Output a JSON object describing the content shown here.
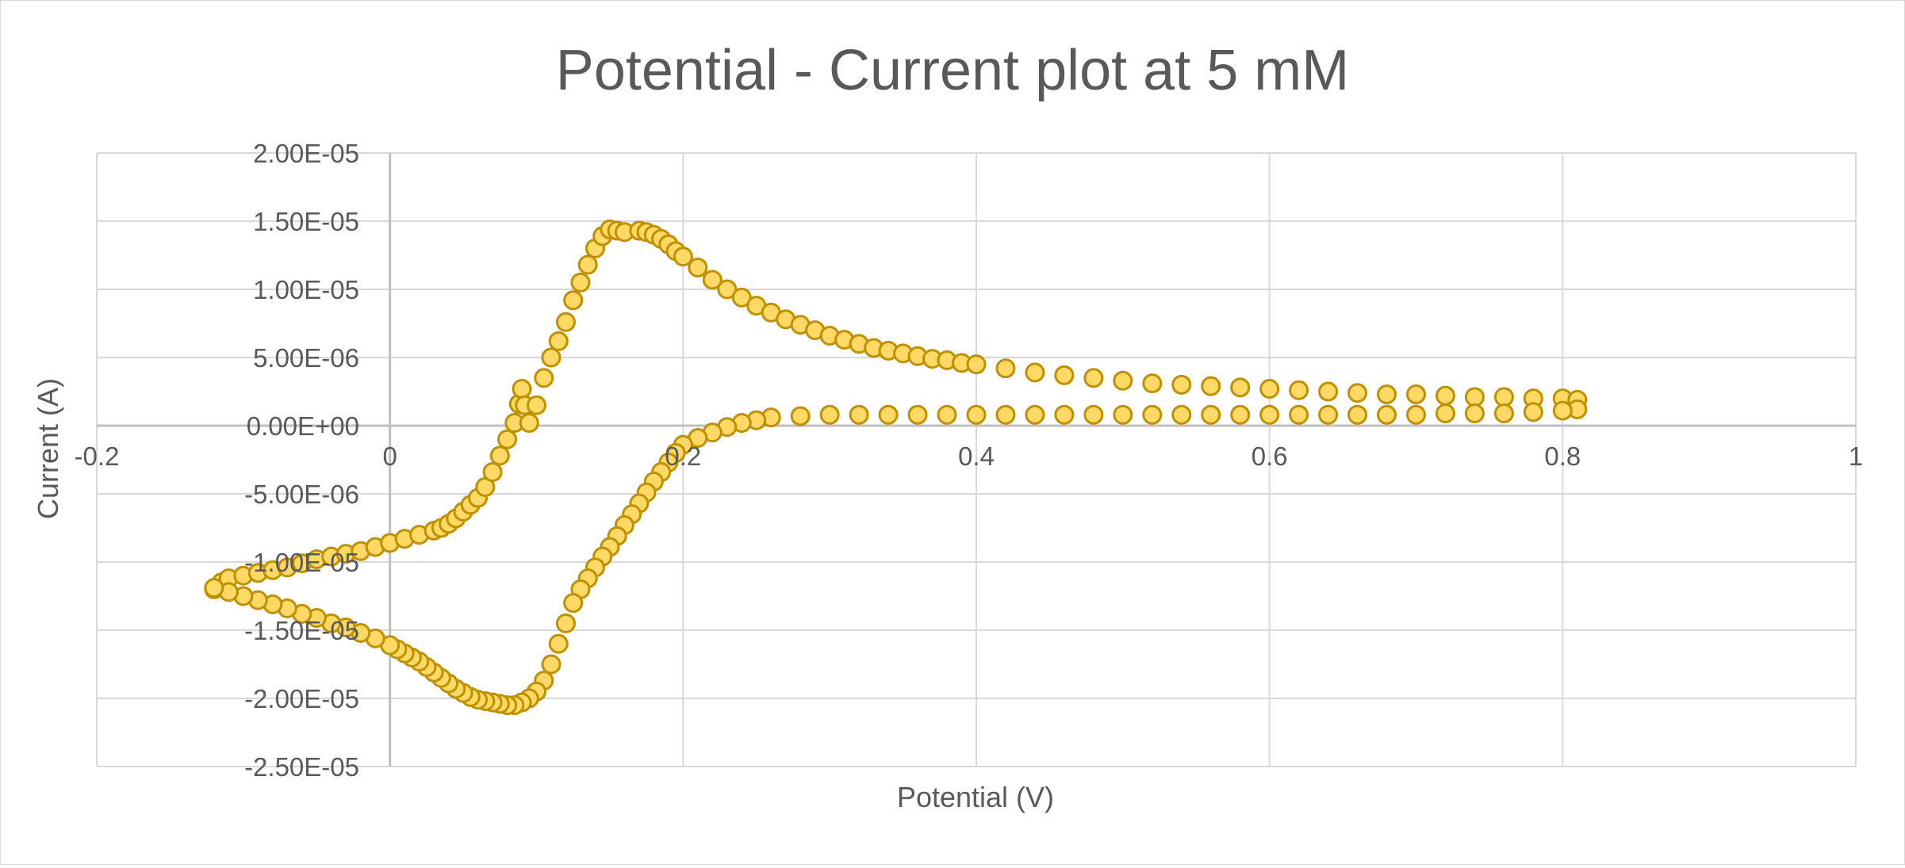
{
  "chart_data": {
    "type": "scatter",
    "title": "Potential - Current plot at 5 mM",
    "xlabel": "Potential (V)",
    "ylabel": "Current (A)",
    "xlim": [
      -0.2,
      1
    ],
    "ylim": [
      -2.5e-05,
      2e-05
    ],
    "x_ticks": [
      -0.2,
      0,
      0.2,
      0.4,
      0.6,
      0.8,
      1
    ],
    "x_tick_labels": [
      "-0.2",
      "0",
      "0.2",
      "0.4",
      "0.6",
      "0.8",
      "1"
    ],
    "y_ticks": [
      2e-05,
      1.5e-05,
      1e-05,
      5e-06,
      0,
      -5e-06,
      -1e-05,
      -1.5e-05,
      -2e-05,
      -2.5e-05
    ],
    "y_tick_labels": [
      "2.00E-05",
      "1.50E-05",
      "1.00E-05",
      "5.00E-06",
      "0.00E+00",
      "-5.00E-06",
      "-1.00E-05",
      "-1.50E-05",
      "-2.00E-05",
      "-2.50E-05"
    ],
    "grid": true,
    "legend": "none",
    "colors": {
      "marker_fill": "#ffd966",
      "marker_edge": "#bf9000",
      "grid": "#d9d9d9",
      "axis": "#bfbfbf",
      "text": "#595959"
    },
    "series": [
      {
        "x": [
          -0.12,
          -0.115,
          -0.11,
          -0.1,
          -0.09,
          -0.08,
          -0.07,
          -0.06,
          -0.05,
          -0.04,
          -0.03,
          -0.02,
          -0.01,
          0.0,
          0.01,
          0.02,
          0.03,
          0.035,
          0.04,
          0.045,
          0.05,
          0.055,
          0.06,
          0.065,
          0.07,
          0.075,
          0.08,
          0.085,
          0.088,
          0.09,
          0.092,
          0.095,
          0.1,
          0.105,
          0.11,
          0.115,
          0.12,
          0.125,
          0.13,
          0.135,
          0.14,
          0.145,
          0.15,
          0.155,
          0.16,
          0.17,
          0.175,
          0.18,
          0.185,
          0.19,
          0.195,
          0.2,
          0.21,
          0.22,
          0.23,
          0.24,
          0.25,
          0.26,
          0.27,
          0.28,
          0.29,
          0.3,
          0.31,
          0.32,
          0.33,
          0.34,
          0.35,
          0.36,
          0.37,
          0.38,
          0.39,
          0.4,
          0.42,
          0.44,
          0.46,
          0.48,
          0.5,
          0.52,
          0.54,
          0.56,
          0.58,
          0.6,
          0.62,
          0.64,
          0.66,
          0.68,
          0.7,
          0.72,
          0.74,
          0.76,
          0.78,
          0.8,
          0.81
        ],
        "y": [
          -1.2e-05,
          -1.15e-05,
          -1.12e-05,
          -1.1e-05,
          -1.08e-05,
          -1.06e-05,
          -1.04e-05,
          -1.01e-05,
          -9.8e-06,
          -9.6e-06,
          -9.4e-06,
          -9.2e-06,
          -8.9e-06,
          -8.6e-06,
          -8.3e-06,
          -8e-06,
          -7.7e-06,
          -7.5e-06,
          -7.2e-06,
          -6.8e-06,
          -6.3e-06,
          -5.8e-06,
          -5.3e-06,
          -4.5e-06,
          -3.4e-06,
          -2.2e-06,
          -1e-06,
          2e-07,
          1.6e-06,
          2.7e-06,
          1.5e-06,
          2e-07,
          1.5e-06,
          3.5e-06,
          5e-06,
          6.2e-06,
          7.6e-06,
          9.2e-06,
          1.05e-05,
          1.18e-05,
          1.3e-05,
          1.39e-05,
          1.44e-05,
          1.43e-05,
          1.42e-05,
          1.43e-05,
          1.42e-05,
          1.4e-05,
          1.37e-05,
          1.33e-05,
          1.28e-05,
          1.24e-05,
          1.16e-05,
          1.07e-05,
          1e-05,
          9.4e-06,
          8.8e-06,
          8.3e-06,
          7.8e-06,
          7.4e-06,
          7e-06,
          6.6e-06,
          6.3e-06,
          6e-06,
          5.7e-06,
          5.5e-06,
          5.3e-06,
          5.1e-06,
          4.9e-06,
          4.8e-06,
          4.6e-06,
          4.5e-06,
          4.2e-06,
          3.9e-06,
          3.7e-06,
          3.5e-06,
          3.3e-06,
          3.1e-06,
          3e-06,
          2.9e-06,
          2.8e-06,
          2.7e-06,
          2.6e-06,
          2.5e-06,
          2.4e-06,
          2.3e-06,
          2.3e-06,
          2.2e-06,
          2.1e-06,
          2.1e-06,
          2e-06,
          2e-06,
          1.9e-06
        ]
      },
      {
        "x": [
          0.81,
          0.8,
          0.78,
          0.76,
          0.74,
          0.72,
          0.7,
          0.68,
          0.66,
          0.64,
          0.62,
          0.6,
          0.58,
          0.56,
          0.54,
          0.52,
          0.5,
          0.48,
          0.46,
          0.44,
          0.42,
          0.4,
          0.38,
          0.36,
          0.34,
          0.32,
          0.3,
          0.28,
          0.26,
          0.25,
          0.24,
          0.23,
          0.22,
          0.21,
          0.2,
          0.195,
          0.19,
          0.185,
          0.18,
          0.175,
          0.17,
          0.165,
          0.16,
          0.155,
          0.15,
          0.145,
          0.14,
          0.135,
          0.13,
          0.125,
          0.12,
          0.115,
          0.11,
          0.105,
          0.1,
          0.095,
          0.09,
          0.085,
          0.08,
          0.075,
          0.07,
          0.065,
          0.06,
          0.055,
          0.05,
          0.045,
          0.04,
          0.035,
          0.03,
          0.025,
          0.02,
          0.015,
          0.01,
          0.005,
          0.0,
          -0.01,
          -0.02,
          -0.03,
          -0.04,
          -0.05,
          -0.06,
          -0.07,
          -0.08,
          -0.09,
          -0.1,
          -0.11,
          -0.12
        ],
        "y": [
          1.2e-06,
          1.1e-06,
          1e-06,
          9e-07,
          9e-07,
          9e-07,
          8e-07,
          8e-07,
          8e-07,
          8e-07,
          8e-07,
          8e-07,
          8e-07,
          8e-07,
          8e-07,
          8e-07,
          8e-07,
          8e-07,
          8e-07,
          8e-07,
          8e-07,
          8e-07,
          8e-07,
          8e-07,
          8e-07,
          8e-07,
          8e-07,
          7e-07,
          6e-07,
          4e-07,
          2e-07,
          -1e-07,
          -5e-07,
          -9e-07,
          -1.4e-06,
          -2e-06,
          -2.7e-06,
          -3.4e-06,
          -4.1e-06,
          -4.9e-06,
          -5.7e-06,
          -6.5e-06,
          -7.3e-06,
          -8.1e-06,
          -8.9e-06,
          -9.6e-06,
          -1.04e-05,
          -1.12e-05,
          -1.2e-05,
          -1.3e-05,
          -1.45e-05,
          -1.6e-05,
          -1.75e-05,
          -1.87e-05,
          -1.95e-05,
          -2e-05,
          -2.03e-05,
          -2.05e-05,
          -2.05e-05,
          -2.04e-05,
          -2.03e-05,
          -2.02e-05,
          -2.01e-05,
          -1.99e-05,
          -1.96e-05,
          -1.93e-05,
          -1.89e-05,
          -1.85e-05,
          -1.81e-05,
          -1.77e-05,
          -1.73e-05,
          -1.7e-05,
          -1.67e-05,
          -1.64e-05,
          -1.61e-05,
          -1.56e-05,
          -1.52e-05,
          -1.48e-05,
          -1.45e-05,
          -1.41e-05,
          -1.38e-05,
          -1.34e-05,
          -1.31e-05,
          -1.28e-05,
          -1.25e-05,
          -1.22e-05,
          -1.19e-05
        ]
      }
    ]
  }
}
